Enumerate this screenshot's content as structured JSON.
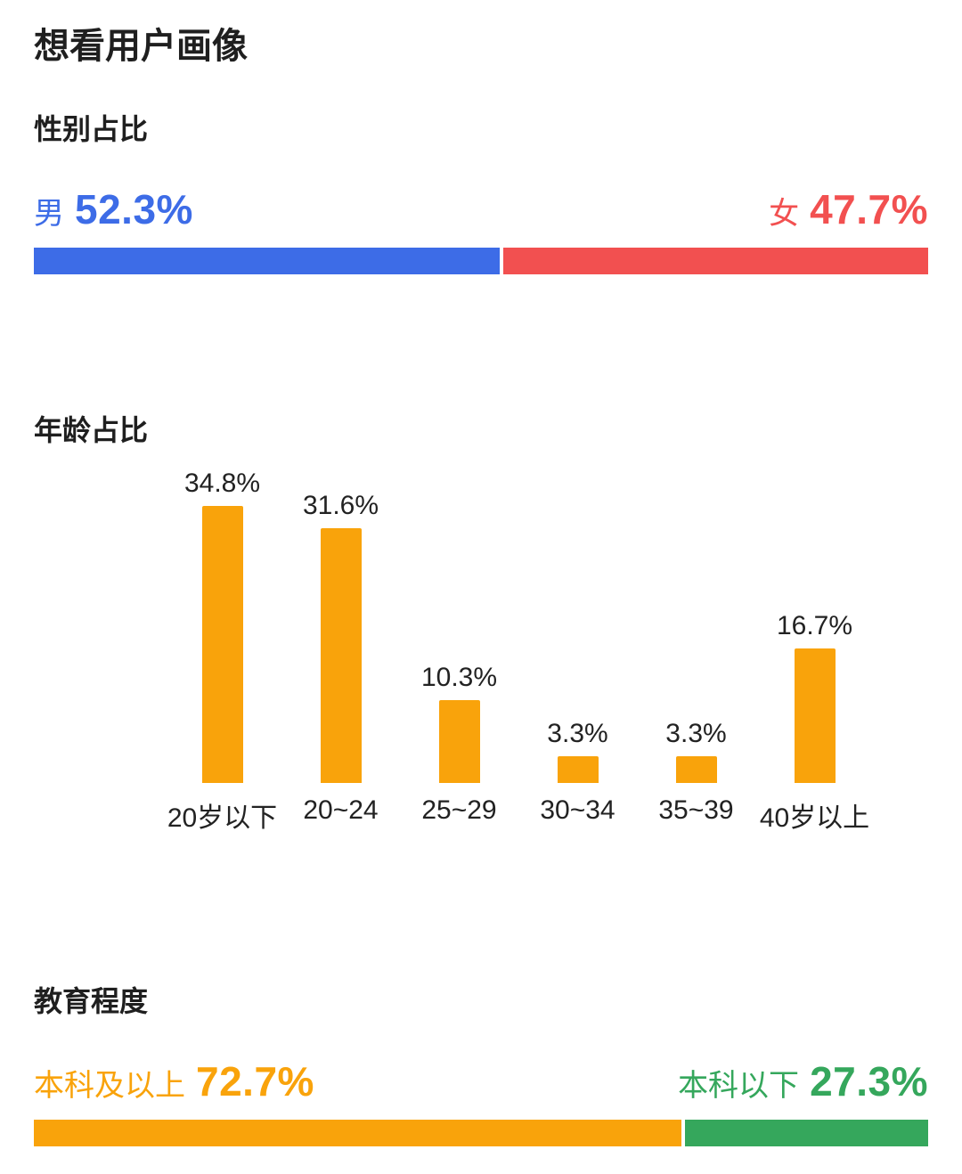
{
  "page": {
    "title": "想看用户画像"
  },
  "sections": {
    "gender": {
      "title": "性别占比"
    },
    "age": {
      "title": "年龄占比"
    },
    "education": {
      "title": "教育程度"
    }
  },
  "gender": {
    "left": {
      "label": "男",
      "value": "52.3%"
    },
    "right": {
      "label": "女",
      "value": "47.7%"
    }
  },
  "education": {
    "left": {
      "label": "本科及以上",
      "value": "72.7%"
    },
    "right": {
      "label": "本科以下",
      "value": "27.3%"
    }
  },
  "colors": {
    "male_blue": "#3D6CE7",
    "female_red": "#F25050",
    "orange": "#F9A30B",
    "green": "#35A75C",
    "text_dark": "#222222"
  },
  "chart_data": [
    {
      "type": "bar",
      "orientation": "horizontal-stacked",
      "title": "性别占比",
      "categories": [
        "男",
        "女"
      ],
      "values": [
        52.3,
        47.7
      ],
      "labels": [
        "52.3%",
        "47.7%"
      ],
      "colors": [
        "#3D6CE7",
        "#F25050"
      ]
    },
    {
      "type": "bar",
      "orientation": "vertical",
      "title": "年龄占比",
      "categories": [
        "20岁以下",
        "20~24",
        "25~29",
        "30~34",
        "35~39",
        "40岁以上"
      ],
      "values": [
        34.8,
        31.6,
        10.3,
        3.3,
        3.3,
        16.7
      ],
      "labels": [
        "34.8%",
        "31.6%",
        "10.3%",
        "3.3%",
        "3.3%",
        "16.7%"
      ],
      "color": "#F9A30B",
      "ylim": [
        0,
        34.8
      ],
      "grid": false,
      "legend": false
    },
    {
      "type": "bar",
      "orientation": "horizontal-stacked",
      "title": "教育程度",
      "categories": [
        "本科及以上",
        "本科以下"
      ],
      "values": [
        72.7,
        27.3
      ],
      "labels": [
        "72.7%",
        "27.3%"
      ],
      "colors": [
        "#F9A30B",
        "#35A75C"
      ]
    }
  ]
}
